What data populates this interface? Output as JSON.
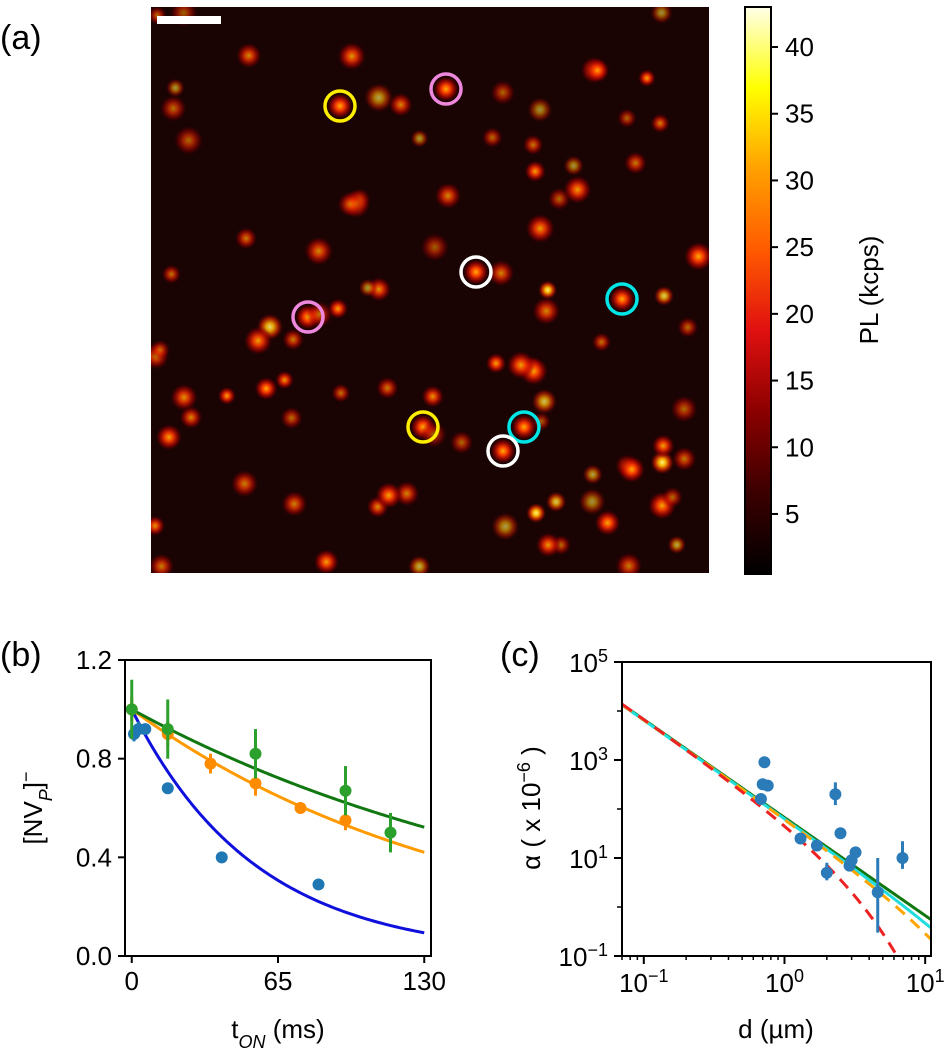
{
  "panels": {
    "a": "(a)",
    "b": "(b)",
    "c": "(c)"
  },
  "chart_data": [
    {
      "type": "heatmap",
      "panel": "(a)",
      "description_of_content": "confocal photoluminescence map",
      "colorbar": {
        "label": "PL (kcps)",
        "ticks": [
          5,
          10,
          15,
          20,
          25,
          30,
          35,
          40
        ],
        "tick_labels": [
          "5",
          "10",
          "15",
          "20",
          "25",
          "30",
          "35",
          "40"
        ],
        "range": [
          0.5,
          43
        ],
        "colormap": [
          "#000000",
          "#3b0000",
          "#8b0000",
          "#e01010",
          "#ff5a00",
          "#ffa000",
          "#ffff00",
          "#ffffe8"
        ]
      },
      "spot_count_approx": 95,
      "scale_bar": true,
      "highlighted_pairs": [
        {
          "color": "#ffee00",
          "count": 2
        },
        {
          "color": "#ee88dd",
          "count": 2
        },
        {
          "color": "#ffffff",
          "count": 2
        },
        {
          "color": "#00e5e5",
          "count": 2
        }
      ]
    },
    {
      "type": "scatter",
      "panel": "(b)",
      "xlabel": "t",
      "xlabel_sub": "ON",
      "xlabel_unit": " (ms)",
      "ylabel": "[NV",
      "ylabel_sub": "P",
      "ylabel_end": "]",
      "ylabel_sup": "−",
      "xlim": [
        -3,
        133
      ],
      "ylim": [
        0.0,
        1.2
      ],
      "xticks": [
        0,
        65,
        130
      ],
      "xtick_labels": [
        "0",
        "65",
        "130"
      ],
      "yticks": [
        0.0,
        0.4,
        0.8,
        1.2
      ],
      "ytick_labels": [
        "0.0",
        "0.4",
        "0.8",
        "1.2"
      ],
      "series": [
        {
          "color": "#1f77b4",
          "x": [
            1,
            3,
            6,
            16,
            40,
            83
          ],
          "y": [
            0.9,
            0.92,
            0.92,
            0.68,
            0.4,
            0.29
          ],
          "yerr": [
            0.03,
            0.03,
            0.02,
            0,
            0,
            0
          ],
          "fit": {
            "color": "#1010dd",
            "amplitude": 1.0,
            "tau": 55
          }
        },
        {
          "color": "#ff8c00",
          "x": [
            0,
            16,
            35,
            55,
            75,
            95
          ],
          "y": [
            1.0,
            0.9,
            0.78,
            0.7,
            0.6,
            0.55
          ],
          "yerr": [
            0.05,
            0.05,
            0.04,
            0.05,
            0.02,
            0.04
          ],
          "fit": {
            "color": "#ff9a00",
            "amplitude": 1.0,
            "tau": 150
          }
        },
        {
          "color": "#2ca02c",
          "x": [
            0,
            16,
            55,
            95,
            115
          ],
          "y": [
            1.0,
            0.92,
            0.82,
            0.67,
            0.5
          ],
          "yerr": [
            0.12,
            0.12,
            0.1,
            0.1,
            0.08
          ],
          "fit": {
            "color": "#117711",
            "amplitude": 1.0,
            "tau": 200
          }
        }
      ]
    },
    {
      "type": "scatter",
      "panel": "(c)",
      "xscale": "log",
      "yscale": "log",
      "xlabel": "d (µm)",
      "ylabel": "α ( x 10",
      "ylabel_sup": "−6",
      "ylabel_end": " )",
      "xlim": [
        0.07,
        11
      ],
      "ylim": [
        0.1,
        100000
      ],
      "xticks": [
        0.1,
        1,
        10
      ],
      "xtick_base": [
        "10",
        "10",
        "10"
      ],
      "xtick_exp": [
        "−1",
        "0",
        "1"
      ],
      "yticks": [
        0.1,
        10,
        1000,
        100000
      ],
      "ytick_base": [
        "10",
        "10",
        "10",
        "10"
      ],
      "ytick_exp": [
        "−1",
        "1",
        "3",
        "5"
      ],
      "points": {
        "color": "#2b7bb9",
        "d": [
          0.68,
          0.72,
          0.7,
          0.76,
          1.3,
          1.7,
          2.0,
          2.3,
          2.5,
          2.9,
          3.0,
          3.2,
          4.6,
          6.9
        ],
        "alpha": [
          160,
          900,
          320,
          300,
          25,
          18,
          5,
          200,
          32,
          7,
          9,
          13,
          2,
          10
        ],
        "err_low": [
          0,
          0,
          0,
          0,
          0,
          0,
          1.5,
          80,
          0,
          0,
          0,
          0,
          1.7,
          4
        ],
        "err_high": [
          0,
          0,
          0,
          0,
          0,
          0,
          3,
          150,
          0,
          0,
          0,
          0,
          8,
          12
        ]
      },
      "curves": [
        {
          "color": "#117711",
          "style": "solid",
          "A": 67,
          "p": 2,
          "d0": null
        },
        {
          "color": "#22dddd",
          "style": "solid",
          "A": 65,
          "p": 2,
          "d0": 30
        },
        {
          "color": "#ffa500",
          "style": "dashed",
          "A": 66,
          "p": 2,
          "d0": 12
        },
        {
          "color": "#ee2222",
          "style": "dashed",
          "A": 70,
          "p": 2,
          "d0": 2.2
        }
      ]
    }
  ]
}
